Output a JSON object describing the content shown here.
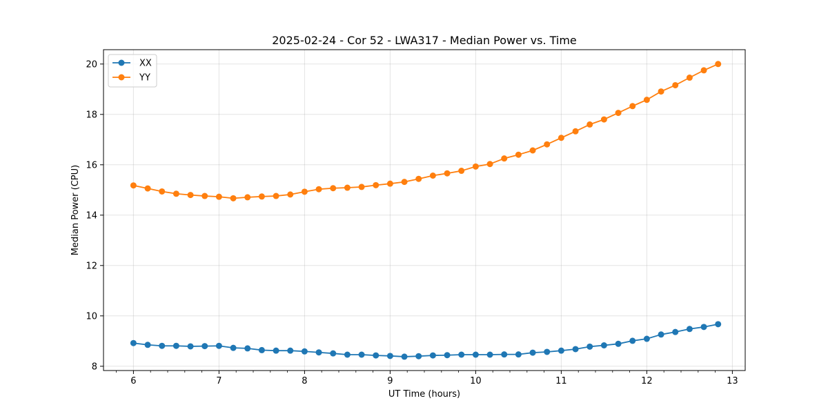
{
  "chart_data": {
    "type": "line",
    "title": "2025-02-24 - Cor 52 - LWA317 - Median Power vs. Time",
    "xlabel": "UT Time (hours)",
    "ylabel": "Median Power (CPU)",
    "xlim": [
      5.65,
      13.15
    ],
    "ylim": [
      7.83,
      20.57
    ],
    "xticks": [
      6,
      7,
      8,
      9,
      10,
      11,
      12,
      13
    ],
    "yticks": [
      8,
      10,
      12,
      14,
      16,
      18,
      20
    ],
    "grid": true,
    "legend_position": "upper-left",
    "x": [
      6.0,
      6.1667,
      6.3333,
      6.5,
      6.6667,
      6.8333,
      7.0,
      7.1667,
      7.3333,
      7.5,
      7.6667,
      7.8333,
      8.0,
      8.1667,
      8.3333,
      8.5,
      8.6667,
      8.8333,
      9.0,
      9.1667,
      9.3333,
      9.5,
      9.6667,
      9.8333,
      10.0,
      10.1667,
      10.3333,
      10.5,
      10.6667,
      10.8333,
      11.0,
      11.1667,
      11.3333,
      11.5,
      11.6667,
      11.8333,
      12.0,
      12.1667,
      12.3333,
      12.5,
      12.6667,
      12.8333
    ],
    "series": [
      {
        "name": "XX",
        "color": "#1f77b4",
        "values": [
          8.92,
          8.85,
          8.81,
          8.81,
          8.79,
          8.8,
          8.81,
          8.73,
          8.71,
          8.64,
          8.62,
          8.62,
          8.59,
          8.55,
          8.51,
          8.46,
          8.46,
          8.43,
          8.41,
          8.38,
          8.4,
          8.43,
          8.44,
          8.46,
          8.46,
          8.46,
          8.47,
          8.47,
          8.54,
          8.57,
          8.62,
          8.68,
          8.78,
          8.83,
          8.89,
          9.01,
          9.09,
          9.26,
          9.36,
          9.48,
          9.56,
          9.67
        ]
      },
      {
        "name": "YY",
        "color": "#ff7f0e",
        "values": [
          15.18,
          15.06,
          14.94,
          14.85,
          14.8,
          14.76,
          14.73,
          14.67,
          14.71,
          14.74,
          14.76,
          14.82,
          14.93,
          15.03,
          15.07,
          15.09,
          15.12,
          15.19,
          15.25,
          15.32,
          15.44,
          15.57,
          15.66,
          15.76,
          15.93,
          16.03,
          16.25,
          16.4,
          16.57,
          16.81,
          17.07,
          17.33,
          17.6,
          17.8,
          18.06,
          18.33,
          18.58,
          18.91,
          19.16,
          19.46,
          19.75,
          20.0
        ]
      }
    ]
  }
}
